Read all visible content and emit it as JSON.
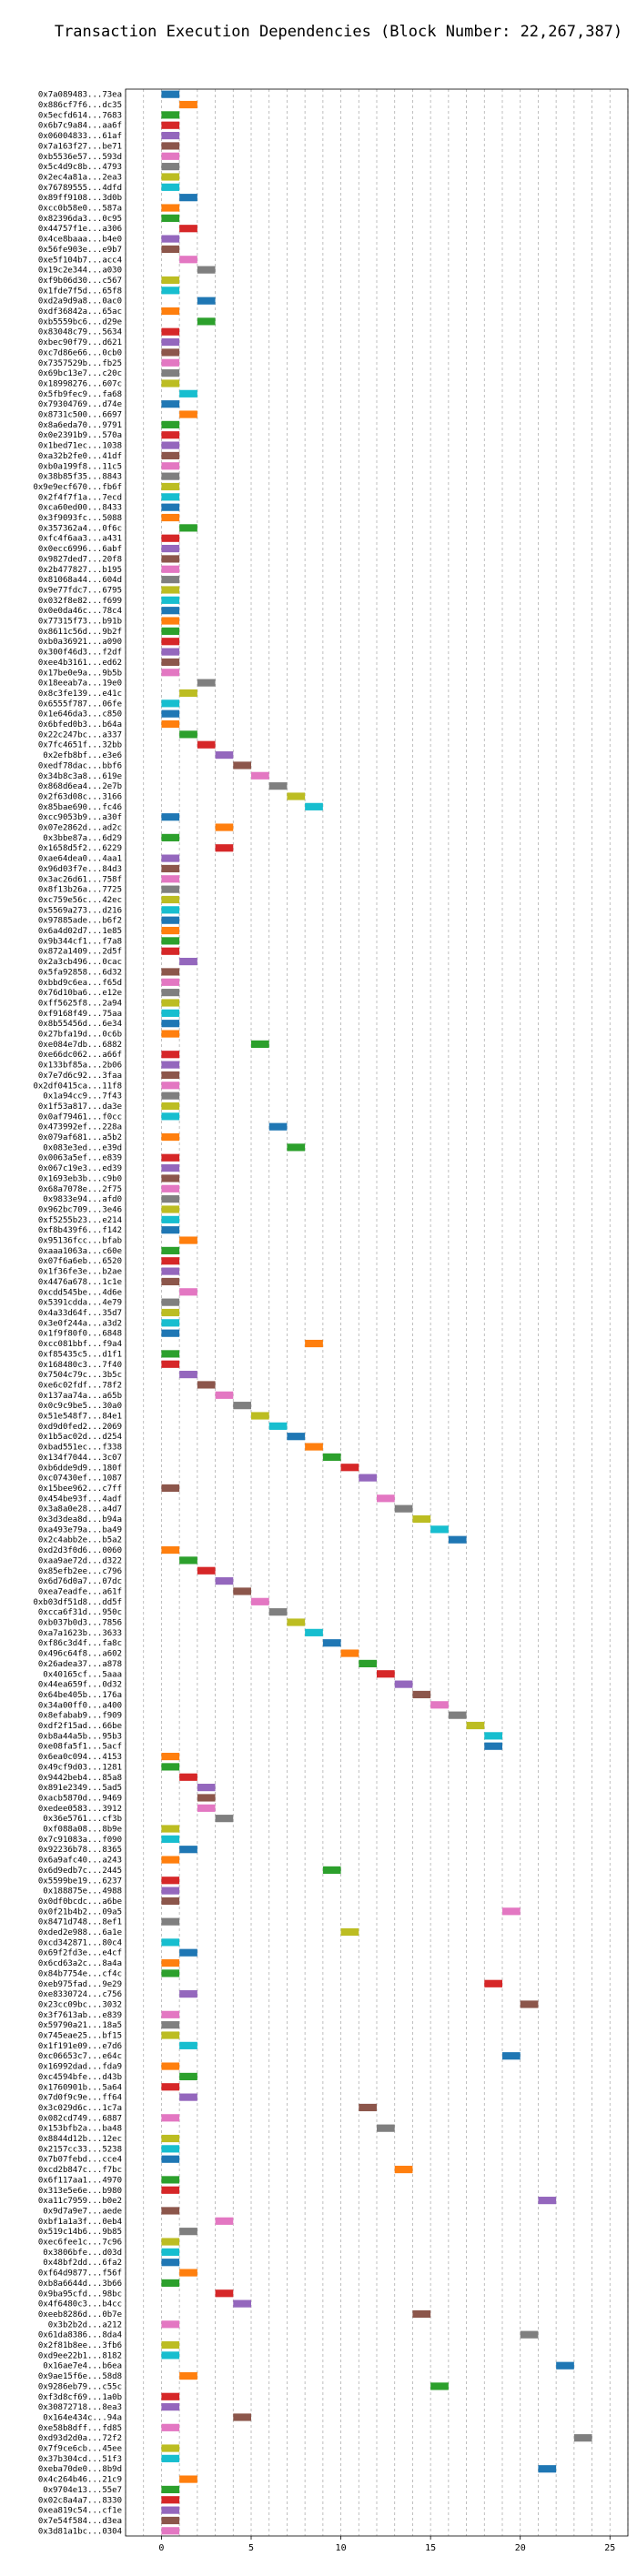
{
  "chart_data": {
    "type": "bar",
    "orientation": "horizontal",
    "title": "Transaction Execution Dependencies (Block Number: 22,267,387)",
    "xlabel": "",
    "ylabel": "",
    "xlim": [
      -2,
      26
    ],
    "xticks": [
      0,
      5,
      10,
      15,
      20,
      25
    ],
    "grid": true,
    "bar_length": 1,
    "palette": [
      "#1f77b4",
      "#ff7f0e",
      "#2ca02c",
      "#d62728",
      "#9467bd",
      "#8c564b",
      "#e377c2",
      "#7f7f7f",
      "#bcbd22",
      "#17becf"
    ],
    "transactions": [
      {
        "label": "0x7a089483...73ea",
        "start": 0
      },
      {
        "label": "0x886cf7f6...dc35",
        "start": 1
      },
      {
        "label": "0x5ecfd614...7683",
        "start": 0
      },
      {
        "label": "0x6b7c9a84...aa6f",
        "start": 0
      },
      {
        "label": "0x06004833...61af",
        "start": 0
      },
      {
        "label": "0x7a163f27...be71",
        "start": 0
      },
      {
        "label": "0xb5536e57...593d",
        "start": 0
      },
      {
        "label": "0x5c4d9c8b...4793",
        "start": 0
      },
      {
        "label": "0x2ec4a81a...2ea3",
        "start": 0
      },
      {
        "label": "0x76789555...4dfd",
        "start": 0
      },
      {
        "label": "0x89ff9108...3d0b",
        "start": 1
      },
      {
        "label": "0xcc0b58e0...587a",
        "start": 0
      },
      {
        "label": "0x82396da3...0c95",
        "start": 0
      },
      {
        "label": "0x44757f1e...a306",
        "start": 1
      },
      {
        "label": "0x4ce8baaa...b4e0",
        "start": 0
      },
      {
        "label": "0x56fe903e...e9b7",
        "start": 0
      },
      {
        "label": "0xe5f104b7...acc4",
        "start": 1
      },
      {
        "label": "0x19c2e344...a030",
        "start": 2
      },
      {
        "label": "0xf9b06d30...c567",
        "start": 0
      },
      {
        "label": "0x1fde7f5d...65f8",
        "start": 0
      },
      {
        "label": "0xd2a9d9a8...0ac0",
        "start": 2
      },
      {
        "label": "0xdf36842a...65ac",
        "start": 0
      },
      {
        "label": "0xb5559bc6...d29e",
        "start": 2
      },
      {
        "label": "0x83048c79...5634",
        "start": 0
      },
      {
        "label": "0xbec90f79...d621",
        "start": 0
      },
      {
        "label": "0xc7d86e66...0cb0",
        "start": 0
      },
      {
        "label": "0x7357529b...fb25",
        "start": 0
      },
      {
        "label": "0x69bc13e7...c20c",
        "start": 0
      },
      {
        "label": "0x18998276...607c",
        "start": 0
      },
      {
        "label": "0x5fb9fec9...fa68",
        "start": 1
      },
      {
        "label": "0x79304769...d74e",
        "start": 0
      },
      {
        "label": "0x8731c500...6697",
        "start": 1
      },
      {
        "label": "0x8a6eda70...9791",
        "start": 0
      },
      {
        "label": "0x0e2391b9...570a",
        "start": 0
      },
      {
        "label": "0x1bed71ec...1038",
        "start": 0
      },
      {
        "label": "0xa32b2fe0...41df",
        "start": 0
      },
      {
        "label": "0xb0a199f8...11c5",
        "start": 0
      },
      {
        "label": "0x38b85f35...8843",
        "start": 0
      },
      {
        "label": "0x9e9ecf670...fb6f",
        "start": 0
      },
      {
        "label": "0x2f4f7f1a...7ecd",
        "start": 0
      },
      {
        "label": "0xca60ed00...8433",
        "start": 0
      },
      {
        "label": "0x3f9093fc...5088",
        "start": 0
      },
      {
        "label": "0x357362a4...0f6c",
        "start": 1
      },
      {
        "label": "0xfc4f6aa3...a431",
        "start": 0
      },
      {
        "label": "0x0ecc6996...6abf",
        "start": 0
      },
      {
        "label": "0x9827ded7...20f8",
        "start": 0
      },
      {
        "label": "0x2b477827...b195",
        "start": 0
      },
      {
        "label": "0x81068a44...604d",
        "start": 0
      },
      {
        "label": "0x9e77fdc7...6795",
        "start": 0
      },
      {
        "label": "0x032f8e82...f699",
        "start": 0
      },
      {
        "label": "0x0e0da46c...78c4",
        "start": 0
      },
      {
        "label": "0x77315f73...b91b",
        "start": 0
      },
      {
        "label": "0x8611c56d...9b2f",
        "start": 0
      },
      {
        "label": "0xb0a36921...a090",
        "start": 0
      },
      {
        "label": "0x300f46d3...f2df",
        "start": 0
      },
      {
        "label": "0xee4b3161...ed62",
        "start": 0
      },
      {
        "label": "0x17be0e9a...9b5b",
        "start": 0
      },
      {
        "label": "0x18eeab7a...19e0",
        "start": 2
      },
      {
        "label": "0x8c3fe139...e41c",
        "start": 1
      },
      {
        "label": "0x6555f787...06fe",
        "start": 0
      },
      {
        "label": "0x1e646da3...c850",
        "start": 0
      },
      {
        "label": "0x6bfed0b3...b64a",
        "start": 0
      },
      {
        "label": "0x22c247bc...a337",
        "start": 1
      },
      {
        "label": "0x7fc4651f...32bb",
        "start": 2
      },
      {
        "label": "0x2efb8bf...e3e6",
        "start": 3
      },
      {
        "label": "0xedf78dac...bbf6",
        "start": 4
      },
      {
        "label": "0x34b8c3a8...619e",
        "start": 5
      },
      {
        "label": "0x868d6ea4...2e7b",
        "start": 6
      },
      {
        "label": "0x2f63d08c...3166",
        "start": 7
      },
      {
        "label": "0x85bae690...fc46",
        "start": 8
      },
      {
        "label": "0xcc9053b9...a30f",
        "start": 0
      },
      {
        "label": "0x07e2862d...ad2c",
        "start": 3
      },
      {
        "label": "0x3bbe87a...6d29",
        "start": 0
      },
      {
        "label": "0x1658d5f2...6229",
        "start": 3
      },
      {
        "label": "0xae64dea0...4aa1",
        "start": 0
      },
      {
        "label": "0x96d03f7e...84d3",
        "start": 0
      },
      {
        "label": "0x3ac26d61...758f",
        "start": 0
      },
      {
        "label": "0x8f13b26a...7725",
        "start": 0
      },
      {
        "label": "0xc759e56c...42ec",
        "start": 0
      },
      {
        "label": "0x5569a273...d216",
        "start": 0
      },
      {
        "label": "0x97885ade...b6f2",
        "start": 0
      },
      {
        "label": "0x6a4d02d7...1e85",
        "start": 0
      },
      {
        "label": "0x9b344cf1...f7a8",
        "start": 0
      },
      {
        "label": "0x872a1409...2d5f",
        "start": 0
      },
      {
        "label": "0x2a3cb496...0cac",
        "start": 1
      },
      {
        "label": "0x5fa92858...6d32",
        "start": 0
      },
      {
        "label": "0xbbd9c6ea...f65d",
        "start": 0
      },
      {
        "label": "0x76d10ba6...e12e",
        "start": 0
      },
      {
        "label": "0xff5625f8...2a94",
        "start": 0
      },
      {
        "label": "0xf9168f49...75aa",
        "start": 0
      },
      {
        "label": "0x8b55456d...6e34",
        "start": 0
      },
      {
        "label": "0x27bfa19d...0c6b",
        "start": 0
      },
      {
        "label": "0xe084e7db...6882",
        "start": 5
      },
      {
        "label": "0xe66dc062...a66f",
        "start": 0
      },
      {
        "label": "0x133bf85a...2b06",
        "start": 0
      },
      {
        "label": "0x7e7d6c92...3faa",
        "start": 0
      },
      {
        "label": "0x2df0415ca...11f8",
        "start": 0
      },
      {
        "label": "0x1a94cc9...7f43",
        "start": 0
      },
      {
        "label": "0x1f53a817...da3e",
        "start": 0
      },
      {
        "label": "0x0af79461...f0cc",
        "start": 0
      },
      {
        "label": "0x473992ef...228a",
        "start": 6
      },
      {
        "label": "0x079af681...a5b2",
        "start": 0
      },
      {
        "label": "0x083e3ed...e39d",
        "start": 7
      },
      {
        "label": "0x0063a5ef...e839",
        "start": 0
      },
      {
        "label": "0x067c19e3...ed39",
        "start": 0
      },
      {
        "label": "0x1693eb3b...c9b0",
        "start": 0
      },
      {
        "label": "0x68a7078e...2f75",
        "start": 0
      },
      {
        "label": "0x9833e94...afd0",
        "start": 0
      },
      {
        "label": "0x962bc709...3e46",
        "start": 0
      },
      {
        "label": "0xf5255b23...e214",
        "start": 0
      },
      {
        "label": "0xf8b439f6...f142",
        "start": 0
      },
      {
        "label": "0x95136fcc...bfab",
        "start": 1
      },
      {
        "label": "0xaaa1063a...c60e",
        "start": 0
      },
      {
        "label": "0x07f6a6eb...6520",
        "start": 0
      },
      {
        "label": "0x1f36fe3e...b2ae",
        "start": 0
      },
      {
        "label": "0x4476a678...1c1e",
        "start": 0
      },
      {
        "label": "0xcdd545be...4d6e",
        "start": 1
      },
      {
        "label": "0x5391cdda...4e79",
        "start": 0
      },
      {
        "label": "0x4a33d64f...35d7",
        "start": 0
      },
      {
        "label": "0x3e0f244a...a3d2",
        "start": 0
      },
      {
        "label": "0x1f9f80f0...6848",
        "start": 0
      },
      {
        "label": "0xcc081bbf...f9a4",
        "start": 8
      },
      {
        "label": "0xf85435c5...d1f1",
        "start": 0
      },
      {
        "label": "0x168480c3...7f40",
        "start": 0
      },
      {
        "label": "0x7504c79c...3b5c",
        "start": 1
      },
      {
        "label": "0xe6c02fdf...78f2",
        "start": 2
      },
      {
        "label": "0x137aa74a...a65b",
        "start": 3
      },
      {
        "label": "0x0c9c9be5...30a0",
        "start": 4
      },
      {
        "label": "0x51e548f7...84e1",
        "start": 5
      },
      {
        "label": "0xd9d0fed2...2069",
        "start": 6
      },
      {
        "label": "0x1b5ac02d...d254",
        "start": 7
      },
      {
        "label": "0xbad551ec...f338",
        "start": 8
      },
      {
        "label": "0x134f7044...3c07",
        "start": 9
      },
      {
        "label": "0xb6dde9d9...180f",
        "start": 10
      },
      {
        "label": "0xc07430ef...1087",
        "start": 11
      },
      {
        "label": "0x15bee962...c7ff",
        "start": 0
      },
      {
        "label": "0x454be93f...4adf",
        "start": 12
      },
      {
        "label": "0x3a8a0e28...a4d7",
        "start": 13
      },
      {
        "label": "0x3d3dea8d...b94a",
        "start": 14
      },
      {
        "label": "0xa493e79a...ba49",
        "start": 15
      },
      {
        "label": "0x2c4abb2e...b5a2",
        "start": 16
      },
      {
        "label": "0xd2d3f0d6...0060",
        "start": 0
      },
      {
        "label": "0xaa9ae72d...d322",
        "start": 1
      },
      {
        "label": "0x85efb2ee...c796",
        "start": 2
      },
      {
        "label": "0x6d76d0a7...07dc",
        "start": 3
      },
      {
        "label": "0xea7eadfe...a61f",
        "start": 4
      },
      {
        "label": "0xb03df51d8...dd5f",
        "start": 5
      },
      {
        "label": "0xcca6f31d...950c",
        "start": 6
      },
      {
        "label": "0xb037b0d3...7856",
        "start": 7
      },
      {
        "label": "0xa7a1623b...3633",
        "start": 8
      },
      {
        "label": "0xf86c3d4f...fa8c",
        "start": 9
      },
      {
        "label": "0x496c64f8...a602",
        "start": 10
      },
      {
        "label": "0x26adea37...a878",
        "start": 11
      },
      {
        "label": "0x40165cf...5aaa",
        "start": 12
      },
      {
        "label": "0x44ea659f...0d32",
        "start": 13
      },
      {
        "label": "0x64be405b...176a",
        "start": 14
      },
      {
        "label": "0x34a00ff0...a400",
        "start": 15
      },
      {
        "label": "0x8efabab9...f909",
        "start": 16
      },
      {
        "label": "0xdf2f15ad...66be",
        "start": 17
      },
      {
        "label": "0xb8a44a5b...95b3",
        "start": 18
      },
      {
        "label": "0xe08fa5f1...5acf",
        "start": 18
      },
      {
        "label": "0x6ea0c094...4153",
        "start": 0
      },
      {
        "label": "0x49cf9d03...1281",
        "start": 0
      },
      {
        "label": "0x9442beb4...85a8",
        "start": 1
      },
      {
        "label": "0x891e2349...5ad5",
        "start": 2
      },
      {
        "label": "0xacb5870d...9469",
        "start": 2
      },
      {
        "label": "0xedee0583...3912",
        "start": 2
      },
      {
        "label": "0x36e5761...cf3b",
        "start": 3
      },
      {
        "label": "0xf088a08...8b9e",
        "start": 0
      },
      {
        "label": "0x7c91083a...f090",
        "start": 0
      },
      {
        "label": "0x92236b78...8365",
        "start": 1
      },
      {
        "label": "0x6a9afc40...a243",
        "start": 0
      },
      {
        "label": "0x6d9edb7c...2445",
        "start": 9
      },
      {
        "label": "0x5599be19...6237",
        "start": 0
      },
      {
        "label": "0x188875e...4988",
        "start": 0
      },
      {
        "label": "0x0df0bcdc...a6be",
        "start": 0
      },
      {
        "label": "0x0f21b4b2...09a5",
        "start": 19
      },
      {
        "label": "0x8471d748...8ef1",
        "start": 0
      },
      {
        "label": "0xded2e988...6a1e",
        "start": 10
      },
      {
        "label": "0xcd342871...80c4",
        "start": 0
      },
      {
        "label": "0x69f2fd3e...e4cf",
        "start": 1
      },
      {
        "label": "0x6cd63a2c...8a4a",
        "start": 0
      },
      {
        "label": "0x84b7754e...cf4c",
        "start": 0
      },
      {
        "label": "0xeb975fad...9e29",
        "start": 18
      },
      {
        "label": "0xe8330724...c756",
        "start": 1
      },
      {
        "label": "0x23cc09bc...3032",
        "start": 20
      },
      {
        "label": "0x3f7613ab...e839",
        "start": 0
      },
      {
        "label": "0x59790a21...18a5",
        "start": 0
      },
      {
        "label": "0x745eae25...bf15",
        "start": 0
      },
      {
        "label": "0x1f191e09...e7d6",
        "start": 1
      },
      {
        "label": "0xc06653c7...e64c",
        "start": 19
      },
      {
        "label": "0x16992dad...fda9",
        "start": 0
      },
      {
        "label": "0xc4594bfe...d43b",
        "start": 1
      },
      {
        "label": "0x1760901b...5a64",
        "start": 0
      },
      {
        "label": "0x7d0f9c9e...ff64",
        "start": 1
      },
      {
        "label": "0x3c029d6c...1c7a",
        "start": 11
      },
      {
        "label": "0x082cd749...6887",
        "start": 0
      },
      {
        "label": "0x153bfb2a...ba48",
        "start": 12
      },
      {
        "label": "0x8844d12b...12ec",
        "start": 0
      },
      {
        "label": "0x2157cc33...5238",
        "start": 0
      },
      {
        "label": "0x7b07febd...cce4",
        "start": 0
      },
      {
        "label": "0xcd2b847c...f7bc",
        "start": 13
      },
      {
        "label": "0x6f117aa1...4970",
        "start": 0
      },
      {
        "label": "0x313e5e6e...b980",
        "start": 0
      },
      {
        "label": "0xa11c7959...b0e2",
        "start": 21
      },
      {
        "label": "0x9d7a9e7...aede",
        "start": 0
      },
      {
        "label": "0xbf1a1a3f...0eb4",
        "start": 3
      },
      {
        "label": "0x519c14b6...9b85",
        "start": 1
      },
      {
        "label": "0xec6fee1c...7c96",
        "start": 0
      },
      {
        "label": "0x3806bfe...d03d",
        "start": 0
      },
      {
        "label": "0x48bf2dd...6fa2",
        "start": 0
      },
      {
        "label": "0xf64d9877...f56f",
        "start": 1
      },
      {
        "label": "0xb8a6644d...3b66",
        "start": 0
      },
      {
        "label": "0x9ba95cfd...98bc",
        "start": 3
      },
      {
        "label": "0x4f6480c3...b4cc",
        "start": 4
      },
      {
        "label": "0xeeb8286d...0b7e",
        "start": 14
      },
      {
        "label": "0x3b2b2d...a212",
        "start": 0
      },
      {
        "label": "0x61da8386...8da4",
        "start": 20
      },
      {
        "label": "0x2f81b8ee...3fb6",
        "start": 0
      },
      {
        "label": "0xd9ee22b1...8182",
        "start": 0
      },
      {
        "label": "0x16ae7e4...b6ea",
        "start": 22
      },
      {
        "label": "0x9ae15f6e...58d8",
        "start": 1
      },
      {
        "label": "0x9286eb79...c55c",
        "start": 15
      },
      {
        "label": "0xf3d8cf69...1a0b",
        "start": 0
      },
      {
        "label": "0x30872718...8ea3",
        "start": 0
      },
      {
        "label": "0x164e434c...94a",
        "start": 4
      },
      {
        "label": "0xe58b8dff...fd85",
        "start": 0
      },
      {
        "label": "0xd93d2d0a...72f2",
        "start": 23
      },
      {
        "label": "0x7f9ce6cb...45ee",
        "start": 0
      },
      {
        "label": "0x37b304cd...51f3",
        "start": 0
      },
      {
        "label": "0xeba70de0...8b9d",
        "start": 21
      },
      {
        "label": "0x4c264b46...21c9",
        "start": 1
      },
      {
        "label": "0x9704e13...55e7",
        "start": 0
      },
      {
        "label": "0x02c8a4a7...8330",
        "start": 0
      },
      {
        "label": "0xea819c54...cf1e",
        "start": 0
      },
      {
        "label": "0x7e54f584...d3ea",
        "start": 0
      },
      {
        "label": "0x3d81a1bc...0304",
        "start": 0
      }
    ]
  }
}
